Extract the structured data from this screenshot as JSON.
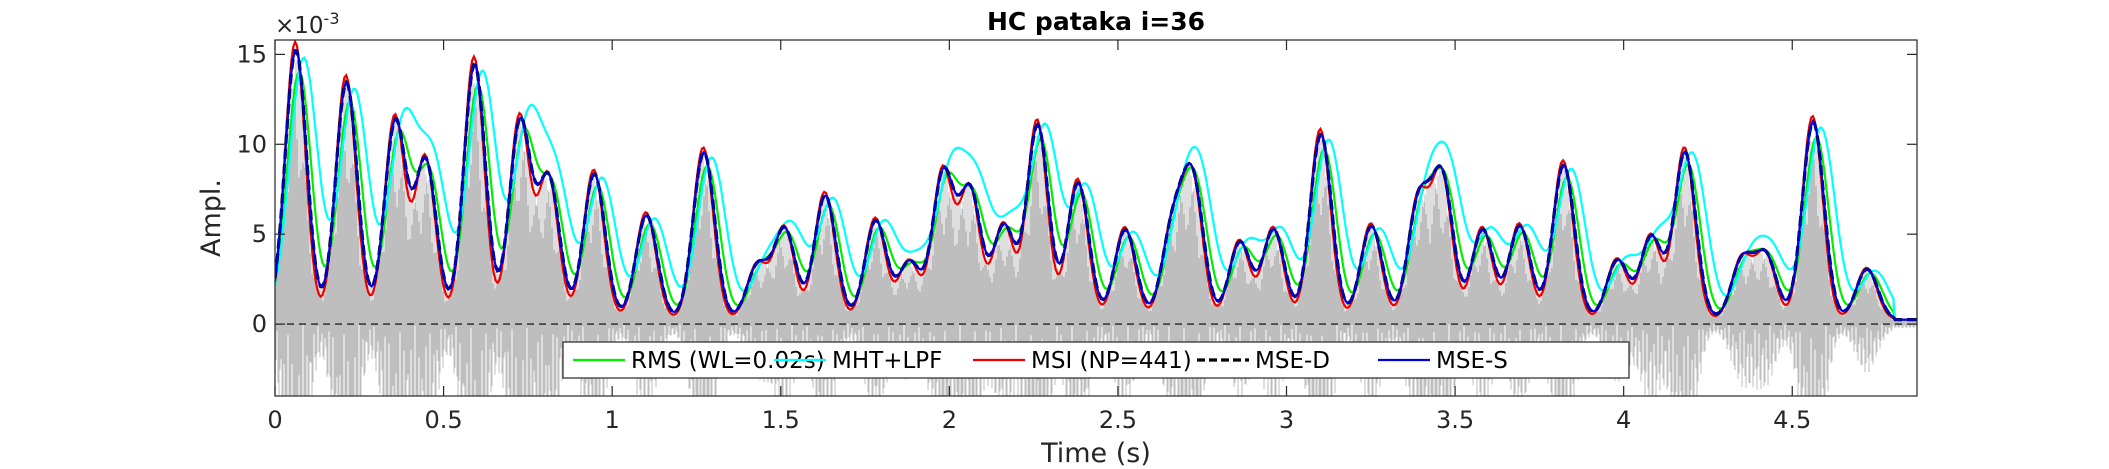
{
  "chart_data": {
    "type": "line",
    "title": "HC pataka i=36",
    "xlabel": "Time (s)",
    "ylabel": "Ampl.",
    "y_scale_note": "×10^-3",
    "y_exponent_base": "×10",
    "y_exponent_power": "-3",
    "xlim": [
      0,
      4.87
    ],
    "ylim": [
      -4,
      15.8
    ],
    "x_ticks": [
      0,
      0.5,
      1,
      1.5,
      2,
      2.5,
      3,
      3.5,
      4,
      4.5
    ],
    "x_tick_labels": [
      "0",
      "0.5",
      "1",
      "1.5",
      "2",
      "2.5",
      "3",
      "3.5",
      "4",
      "4.5"
    ],
    "y_ticks": [
      0,
      5,
      10,
      15
    ],
    "y_tick_labels": [
      "0",
      "5",
      "10",
      "15"
    ],
    "grid": false,
    "zero_line": "dashed-black",
    "legend_location": "bottom-center, single row",
    "background_signal": {
      "name": "waveform",
      "color": "#bebebe"
    },
    "peaks": [
      {
        "t": 0.06,
        "a": 15.0
      },
      {
        "t": 0.21,
        "a": 13.2
      },
      {
        "t": 0.355,
        "a": 11.0
      },
      {
        "t": 0.445,
        "a": 8.8
      },
      {
        "t": 0.59,
        "a": 14.2
      },
      {
        "t": 0.725,
        "a": 11.0
      },
      {
        "t": 0.81,
        "a": 7.8
      },
      {
        "t": 0.945,
        "a": 8.1
      },
      {
        "t": 1.1,
        "a": 5.8
      },
      {
        "t": 1.27,
        "a": 9.3
      },
      {
        "t": 1.43,
        "a": 3.0
      },
      {
        "t": 1.51,
        "a": 5.0
      },
      {
        "t": 1.63,
        "a": 6.9
      },
      {
        "t": 1.78,
        "a": 5.5
      },
      {
        "t": 1.88,
        "a": 3.2
      },
      {
        "t": 1.98,
        "a": 8.1
      },
      {
        "t": 2.06,
        "a": 7.1
      },
      {
        "t": 2.16,
        "a": 5.2
      },
      {
        "t": 2.26,
        "a": 10.8
      },
      {
        "t": 2.38,
        "a": 7.6
      },
      {
        "t": 2.52,
        "a": 5.0
      },
      {
        "t": 2.66,
        "a": 4.9
      },
      {
        "t": 2.72,
        "a": 7.6
      },
      {
        "t": 2.86,
        "a": 4.3
      },
      {
        "t": 2.96,
        "a": 5.0
      },
      {
        "t": 3.1,
        "a": 10.3
      },
      {
        "t": 3.25,
        "a": 5.2
      },
      {
        "t": 3.39,
        "a": 6.5
      },
      {
        "t": 3.46,
        "a": 7.8
      },
      {
        "t": 3.58,
        "a": 5.0
      },
      {
        "t": 3.69,
        "a": 5.2
      },
      {
        "t": 3.82,
        "a": 8.6
      },
      {
        "t": 3.98,
        "a": 3.3
      },
      {
        "t": 4.08,
        "a": 4.6
      },
      {
        "t": 4.18,
        "a": 9.3
      },
      {
        "t": 4.35,
        "a": 3.3
      },
      {
        "t": 4.42,
        "a": 3.5
      },
      {
        "t": 4.56,
        "a": 11.0
      },
      {
        "t": 4.72,
        "a": 2.8
      }
    ],
    "series": [
      {
        "name": "RMS (WL=0.02s)",
        "color": "#00ee00",
        "style": "solid",
        "scale": 0.92,
        "shift": 0.012,
        "width": 0.036
      },
      {
        "name": "MHT+LPF",
        "color": "#00ffff",
        "style": "solid",
        "scale": 0.97,
        "shift": 0.025,
        "width": 0.042
      },
      {
        "name": "MSI (NP=441)",
        "color": "#ee0000",
        "style": "solid",
        "scale": 1.03,
        "shift": 0.0,
        "width": 0.03
      },
      {
        "name": "MSE-D",
        "color": "#000000",
        "style": "dashed",
        "scale": 1.0,
        "shift": 0.002,
        "width": 0.032
      },
      {
        "name": "MSE-S",
        "color": "#0000dd",
        "style": "solid",
        "scale": 1.0,
        "shift": 0.002,
        "width": 0.032
      }
    ]
  }
}
